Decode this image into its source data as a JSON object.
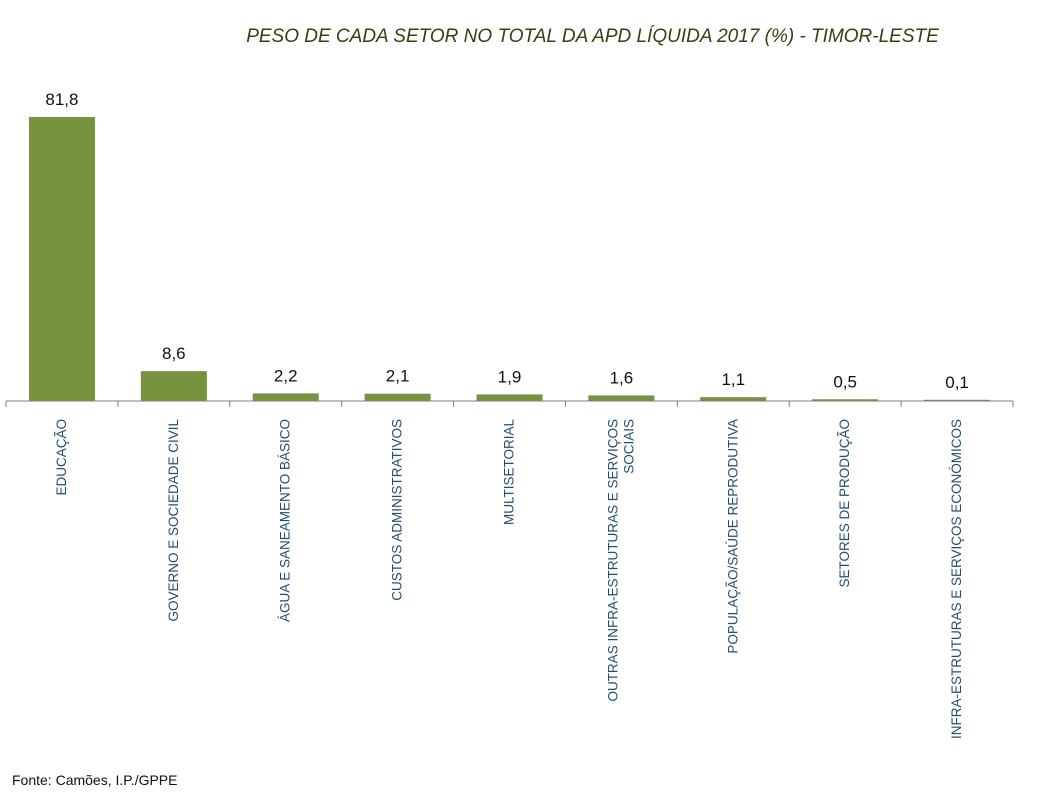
{
  "chart_data": {
    "type": "bar",
    "title": "PESO DE CADA SETOR NO TOTAL DA APD LÍQUIDA 2017 (%) - TIMOR-LESTE",
    "categories": [
      [
        "EDUCAÇÃO"
      ],
      [
        "GOVERNO E SOCIEDADE CIVIL"
      ],
      [
        "ÁGUA E SANEAMENTO BÁSICO"
      ],
      [
        "CUSTOS ADMINISTRATIVOS"
      ],
      [
        "MULTISETORIAL"
      ],
      [
        "OUTRAS INFRA-ESTRUTURAS E SERVIÇOS",
        "SOCIAIS"
      ],
      [
        "POPULAÇÃO/SAÚDE REPRODUTIVA"
      ],
      [
        "SETORES DE PRODUÇÃO"
      ],
      [
        "INFRA-ESTRUTURAS E SERVIÇOS ECONÓMICOS"
      ]
    ],
    "values": [
      81.8,
      8.6,
      2.2,
      2.1,
      1.9,
      1.6,
      1.1,
      0.5,
      0.1
    ],
    "value_labels": [
      "81,8",
      "8,6",
      "2,2",
      "2,1",
      "1,9",
      "1,6",
      "1,1",
      "0,5",
      "0,1"
    ],
    "ylim": [
      0,
      81.8
    ],
    "grid": false,
    "legend": "none",
    "colors": {
      "bar": "#77933c",
      "axis": "#7f7f7f",
      "category_text": "#1f4e79",
      "title_text": "#3d3d0f"
    }
  },
  "source_note": "Fonte: Camões, I.P./GPPE"
}
